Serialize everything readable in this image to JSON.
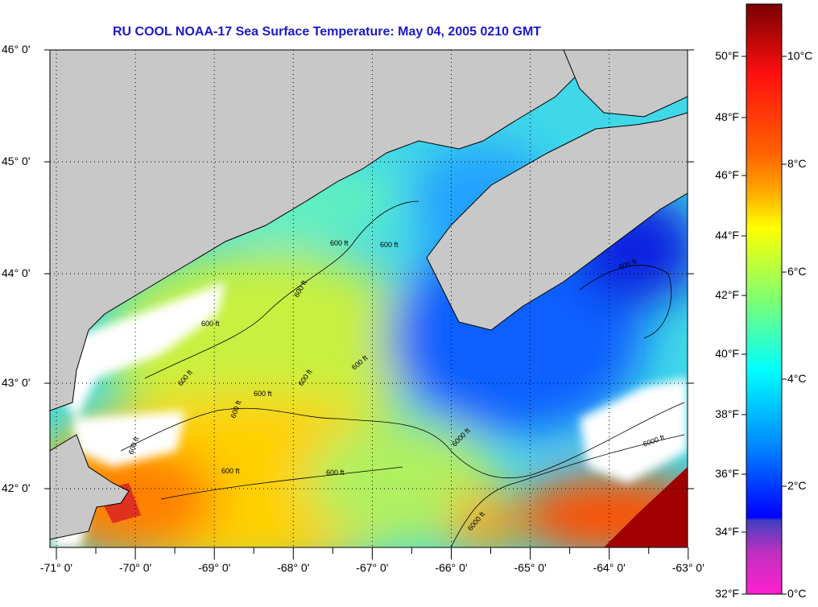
{
  "title": "RU COOL  NOAA-17  Sea Surface Temperature:  May 04, 2005 0210 GMT",
  "lat_labels": [
    "46° 0'",
    "45° 0'",
    "44° 0'",
    "43° 0'",
    "42° 0'"
  ],
  "lon_labels": [
    "-71° 0'",
    "-70° 0'",
    "-69° 0'",
    "-68° 0'",
    "-67° 0'",
    "-66° 0'",
    "-65° 0'",
    "-64° 0'",
    "-63° 0'"
  ],
  "colorbar": {
    "f_labels": [
      "50°F",
      "48°F",
      "46°F",
      "44°F",
      "42°F",
      "40°F",
      "38°F",
      "36°F",
      "34°F",
      "32°F"
    ],
    "c_labels": [
      "10°C",
      "8°C",
      "6°C",
      "4°C",
      "2°C",
      "0°C"
    ]
  },
  "contour_labels": [
    "600 ft",
    "600 ft",
    "600 ft",
    "600 ft",
    "600 ft",
    "600 ft",
    "600 ft",
    "600 ft",
    "600 ft",
    "600 ft",
    "600 ft",
    "600 ft",
    "6000 ft",
    "6000 ft",
    "6000 ft",
    "600 ft"
  ],
  "colors": {
    "title": "#1a1ac8",
    "land": "#c8c8c8",
    "cloud": "#ffffff"
  }
}
